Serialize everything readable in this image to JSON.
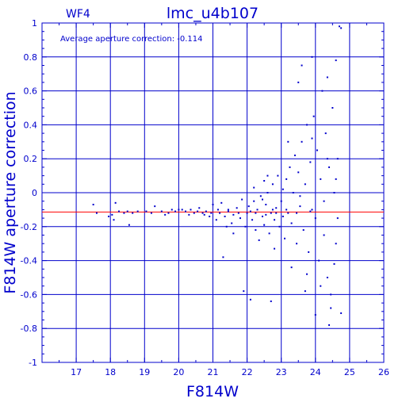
{
  "chart_data": {
    "type": "scatter",
    "panel": "WF4",
    "title": "lmc_u4b107",
    "xlabel": "F814W",
    "ylabel": "F814W aperture correction",
    "annotation": "Average aperture correction: -0.114",
    "xlim": [
      16,
      26
    ],
    "ylim": [
      -1,
      1
    ],
    "xticks": [
      "17",
      "18",
      "19",
      "20",
      "21",
      "22",
      "23",
      "24",
      "25",
      "26"
    ],
    "yticks": [
      "1",
      "0.8",
      "0.6",
      "0.4",
      "0.2",
      "0",
      "-0.2",
      "-0.4",
      "-0.6",
      "-0.8",
      "-1"
    ],
    "grid": true,
    "reference_line": -0.114,
    "colors": {
      "axes": "#0000cc",
      "points": "#0000cc",
      "reference_line": "#ff0000"
    },
    "series": [
      {
        "values": [
          [
            17.5,
            -0.07
          ],
          [
            17.6,
            -0.12
          ],
          [
            17.95,
            -0.14
          ],
          [
            18.05,
            -0.13
          ],
          [
            18.1,
            -0.16
          ],
          [
            18.15,
            -0.06
          ],
          [
            18.25,
            -0.11
          ],
          [
            18.4,
            -0.12
          ],
          [
            18.5,
            -0.11
          ],
          [
            18.55,
            -0.19
          ],
          [
            18.65,
            -0.12
          ],
          [
            18.8,
            -0.11
          ],
          [
            19.05,
            -0.11
          ],
          [
            19.2,
            -0.12
          ],
          [
            19.3,
            -0.08
          ],
          [
            19.5,
            -0.11
          ],
          [
            19.6,
            -0.13
          ],
          [
            19.7,
            -0.12
          ],
          [
            19.8,
            -0.1
          ],
          [
            19.9,
            -0.11
          ],
          [
            20.0,
            -0.1
          ],
          [
            20.1,
            -0.1
          ],
          [
            20.2,
            -0.11
          ],
          [
            20.3,
            -0.13
          ],
          [
            20.45,
            -0.12
          ],
          [
            20.6,
            -0.09
          ],
          [
            20.7,
            -0.12
          ],
          [
            20.8,
            -0.11
          ],
          [
            20.9,
            -0.14
          ],
          [
            21.0,
            -0.07
          ],
          [
            21.1,
            -0.16
          ],
          [
            21.2,
            -0.12
          ],
          [
            21.25,
            -0.06
          ],
          [
            21.35,
            -0.14
          ],
          [
            21.45,
            -0.1
          ],
          [
            21.55,
            -0.18
          ],
          [
            21.6,
            -0.13
          ],
          [
            21.7,
            -0.09
          ],
          [
            21.8,
            -0.15
          ],
          [
            21.85,
            -0.04
          ],
          [
            21.95,
            -0.2
          ],
          [
            22.0,
            -0.12
          ],
          [
            22.05,
            -0.08
          ],
          [
            22.15,
            -0.16
          ],
          [
            22.2,
            -0.05
          ],
          [
            22.25,
            -0.22
          ],
          [
            22.3,
            -0.1
          ],
          [
            22.4,
            -0.02
          ],
          [
            22.45,
            -0.14
          ],
          [
            22.5,
            -0.19
          ],
          [
            22.55,
            -0.07
          ],
          [
            22.6,
            0.0
          ],
          [
            22.65,
            -0.24
          ],
          [
            22.7,
            -0.12
          ],
          [
            22.75,
            0.05
          ],
          [
            22.8,
            -0.16
          ],
          [
            22.85,
            -0.09
          ],
          [
            22.9,
            0.1
          ],
          [
            22.95,
            -0.2
          ],
          [
            23.0,
            -0.05
          ],
          [
            23.05,
            0.02
          ],
          [
            23.1,
            -0.27
          ],
          [
            23.15,
            0.08
          ],
          [
            23.2,
            -0.12
          ],
          [
            23.25,
            0.15
          ],
          [
            23.3,
            -0.18
          ],
          [
            23.35,
            0.0
          ],
          [
            23.4,
            0.22
          ],
          [
            23.45,
            -0.3
          ],
          [
            23.5,
            0.12
          ],
          [
            23.55,
            -0.08
          ],
          [
            23.6,
            0.3
          ],
          [
            23.65,
            -0.22
          ],
          [
            23.7,
            0.05
          ],
          [
            23.75,
            0.4
          ],
          [
            23.8,
            -0.35
          ],
          [
            23.85,
            0.18
          ],
          [
            23.9,
            -0.1
          ],
          [
            23.95,
            0.45
          ],
          [
            24.0,
            -0.15
          ],
          [
            24.05,
            0.25
          ],
          [
            24.1,
            -0.4
          ],
          [
            24.15,
            0.08
          ],
          [
            24.2,
            0.6
          ],
          [
            24.25,
            -0.25
          ],
          [
            24.3,
            0.35
          ],
          [
            24.35,
            -0.5
          ],
          [
            24.4,
            0.15
          ],
          [
            24.45,
            -0.6
          ],
          [
            24.5,
            0.5
          ],
          [
            24.55,
            0.0
          ],
          [
            24.6,
            -0.3
          ],
          [
            24.65,
            0.2
          ],
          [
            24.7,
            0.98
          ],
          [
            24.75,
            0.97
          ],
          [
            23.5,
            0.65
          ],
          [
            23.6,
            0.75
          ],
          [
            24.35,
            0.68
          ],
          [
            24.6,
            0.78
          ],
          [
            22.6,
            0.1
          ],
          [
            21.3,
            -0.38
          ],
          [
            21.9,
            -0.58
          ],
          [
            22.1,
            -0.63
          ],
          [
            22.7,
            -0.64
          ],
          [
            23.7,
            -0.58
          ],
          [
            24.0,
            -0.72
          ],
          [
            24.45,
            -0.68
          ],
          [
            24.75,
            -0.71
          ],
          [
            24.4,
            -0.78
          ],
          [
            23.9,
            0.8
          ],
          [
            21.6,
            -0.24
          ],
          [
            21.4,
            -0.2
          ],
          [
            22.35,
            -0.28
          ],
          [
            22.8,
            -0.33
          ],
          [
            23.3,
            -0.44
          ],
          [
            23.75,
            -0.48
          ],
          [
            24.15,
            -0.55
          ],
          [
            24.55,
            -0.42
          ],
          [
            22.2,
            0.03
          ],
          [
            22.5,
            0.07
          ],
          [
            23.2,
            0.3
          ],
          [
            23.9,
            0.32
          ],
          [
            24.35,
            0.2
          ],
          [
            24.6,
            0.08
          ],
          [
            24.65,
            -0.15
          ],
          [
            24.25,
            -0.05
          ],
          [
            23.55,
            -0.02
          ],
          [
            23.05,
            -0.14
          ],
          [
            22.75,
            -0.1
          ],
          [
            22.45,
            -0.04
          ],
          [
            22.1,
            -0.11
          ],
          [
            21.75,
            -0.12
          ],
          [
            21.45,
            -0.11
          ],
          [
            21.15,
            -0.1
          ],
          [
            20.95,
            -0.12
          ],
          [
            20.75,
            -0.13
          ],
          [
            20.55,
            -0.11
          ],
          [
            20.35,
            -0.1
          ],
          [
            22.25,
            -0.12
          ],
          [
            22.55,
            -0.13
          ],
          [
            22.85,
            -0.12
          ],
          [
            23.15,
            -0.1
          ],
          [
            23.45,
            -0.12
          ],
          [
            23.85,
            -0.11
          ]
        ]
      }
    ]
  }
}
